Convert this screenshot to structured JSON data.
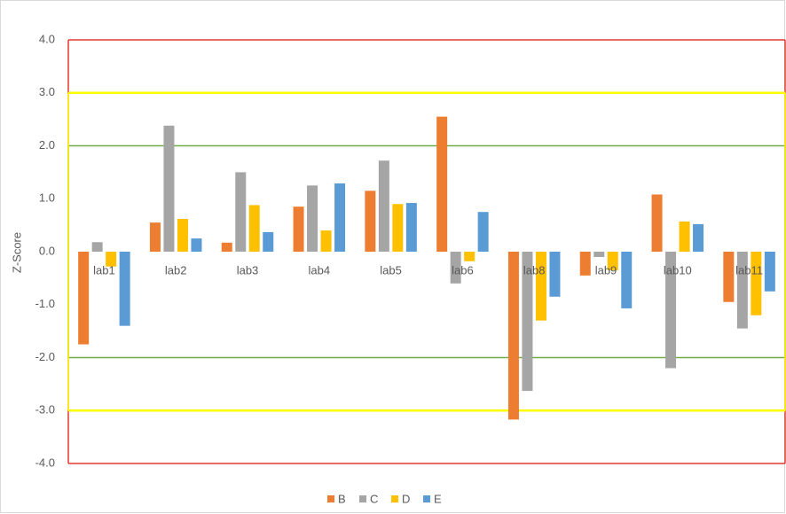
{
  "chart_data": {
    "type": "bar",
    "y_label": "Z-Score",
    "categories": [
      "lab1",
      "lab2",
      "lab3",
      "lab4",
      "lab5",
      "lab6",
      "lab8",
      "lab9",
      "lab10",
      "lab11"
    ],
    "series": [
      {
        "name": "B",
        "color": "#ed7d31",
        "values": [
          -1.75,
          0.55,
          0.17,
          0.85,
          1.15,
          2.55,
          -3.17,
          -0.45,
          1.08,
          -0.95
        ]
      },
      {
        "name": "C",
        "color": "#a5a5a5",
        "values": [
          0.18,
          2.38,
          1.5,
          1.25,
          1.72,
          -0.6,
          -2.63,
          -0.1,
          -2.2,
          -1.45
        ]
      },
      {
        "name": "D",
        "color": "#ffc000",
        "values": [
          -0.28,
          0.62,
          0.88,
          0.4,
          0.9,
          -0.18,
          -1.3,
          -0.35,
          0.57,
          -1.2
        ]
      },
      {
        "name": "E",
        "color": "#5b9bd5",
        "values": [
          -1.4,
          0.25,
          0.37,
          1.29,
          0.92,
          0.75,
          -0.85,
          -1.07,
          0.52,
          -0.75
        ]
      }
    ],
    "ylim": [
      -4,
      4
    ],
    "yticks": [
      {
        "value": -4,
        "label": "-4.0"
      },
      {
        "value": -3,
        "label": "-3.0"
      },
      {
        "value": -2,
        "label": "-2.0"
      },
      {
        "value": -1,
        "label": "-1.0"
      },
      {
        "value": 0,
        "label": "0.0"
      },
      {
        "value": 1,
        "label": "1.0"
      },
      {
        "value": 2,
        "label": "2.0"
      },
      {
        "value": 3,
        "label": "3.0"
      },
      {
        "value": 4,
        "label": "4.0"
      }
    ],
    "reference_lines": [
      {
        "value": 4,
        "color": "#e03c31"
      },
      {
        "value": -4,
        "color": "#e03c31"
      },
      {
        "value": 2,
        "color": "#70ad47"
      },
      {
        "value": -2,
        "color": "#70ad47"
      },
      {
        "value": 3,
        "color": "#ffff00"
      },
      {
        "value": -3,
        "color": "#ffff00"
      }
    ],
    "legend": "bottom"
  }
}
